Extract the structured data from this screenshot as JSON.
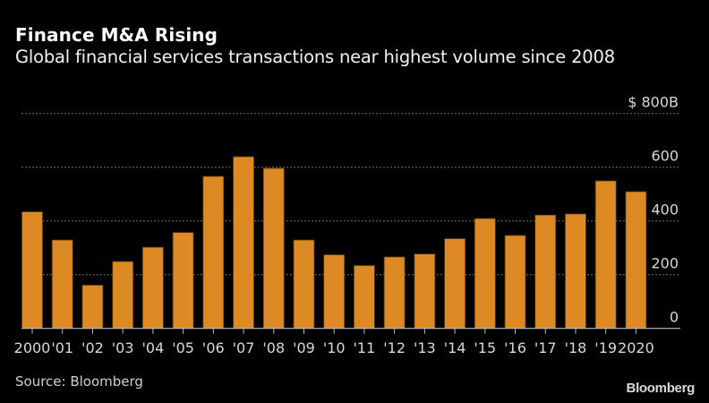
{
  "header": {
    "title": "Finance M&A Rising",
    "subtitle": "Global financial services transactions near highest volume since 2008"
  },
  "footer": {
    "source": "Source: Bloomberg",
    "brand": "Bloomberg"
  },
  "colors": {
    "background": "#000000",
    "bar": "#dd8a24",
    "bar_outline": "#5a3a10",
    "gridline": "#6e6e6e",
    "axis": "#bbbbbb",
    "text": "#d8d8d8"
  },
  "chart_data": {
    "type": "bar",
    "title": "Finance M&A Rising",
    "subtitle": "Global financial services transactions near highest volume since 2008",
    "xlabel": "",
    "ylabel": "",
    "unit_label": "$ 800B",
    "categories": [
      "2000",
      "'01",
      "'02",
      "'03",
      "'04",
      "'05",
      "'06",
      "'07",
      "'08",
      "'09",
      "'10",
      "'11",
      "'12",
      "'13",
      "'14",
      "'15",
      "'16",
      "'17",
      "'18",
      "'19",
      "2020"
    ],
    "values": [
      434,
      329,
      161,
      249,
      302,
      357,
      566,
      639,
      596,
      329,
      274,
      234,
      266,
      277,
      334,
      409,
      346,
      422,
      426,
      549,
      509
    ],
    "value_units": "billions of US dollars",
    "ylim": [
      0,
      800
    ],
    "yticks": [
      0,
      200,
      400,
      600,
      800
    ],
    "ytick_labels": [
      "0",
      "200",
      "400",
      "600",
      "$ 800B"
    ],
    "y_axis_side": "right",
    "grid": true,
    "grid_style": "dotted horizontal",
    "legend": "none",
    "source": "Source: Bloomberg"
  }
}
